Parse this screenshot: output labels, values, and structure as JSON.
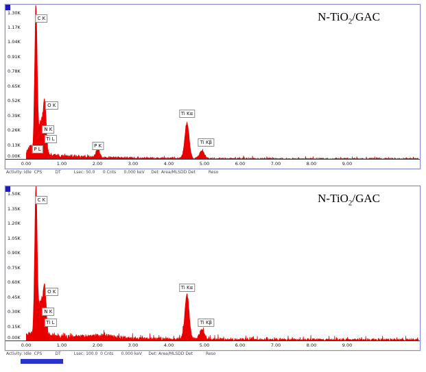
{
  "colors": {
    "spectrum": "#e80000",
    "frame": "#8d8dd0",
    "corner": "#1b1bbe",
    "progress_bar": "#2733cc"
  },
  "panels": [
    {
      "title_prefix": "N-TiO",
      "title_sub": "2",
      "title_suffix": "/GAC",
      "status_text": "Activity: Idle  CPS          DT          Lsec: 50.0      0 Cnts      0.000 keV     Det: Area/MLSDD Det          Reso"
    },
    {
      "title_prefix": "N-TiO",
      "title_sub": "2",
      "title_suffix": "/GAC",
      "status_text": "Activity: Idle  CPS          DT          Lsec: 100.0  0 Cnts      0.000 keV     Det: Area/MLSDD Det          Reso"
    }
  ],
  "chart_data": [
    {
      "type": "area",
      "title": "N-TiO2/GAC",
      "series_color": "#e80000",
      "xlim": [
        0,
        11
      ],
      "ylim": [
        0,
        1.37
      ],
      "x_ticks": [
        "0.00",
        "1.00",
        "2.00",
        "3.00",
        "4.00",
        "5.00",
        "6.00",
        "7.00",
        "8.00",
        "9.00"
      ],
      "y_ticks": [
        "1.30K",
        "1.17K",
        "1.04K",
        "0.91K",
        "0.78K",
        "0.65K",
        "0.52K",
        "0.39K",
        "0.26K",
        "0.13K",
        "0.00K"
      ],
      "seed": 3,
      "background": {
        "base": 0.05,
        "decay": 1.6,
        "floor": 0.005,
        "jitter": 0.015,
        "spike_p": 0.05
      },
      "peaks": [
        {
          "label": "C K",
          "energy": 0.277,
          "height": 1.32,
          "sigma": 0.035,
          "label_y": 1.215,
          "label_dx": 8
        },
        {
          "label": "O K",
          "energy": 0.525,
          "height": 0.42,
          "sigma": 0.042,
          "label_y": 0.44,
          "label_dx": 10
        },
        {
          "label": "N K",
          "energy": 0.392,
          "height": 0.2,
          "sigma": 0.045,
          "label_y": 0.23,
          "label_dx": 12
        },
        {
          "label": "Ti L",
          "energy": 0.452,
          "height": 0.16,
          "sigma": 0.05,
          "label_y": 0.145,
          "label_dx": 12
        },
        {
          "label": "P L",
          "energy": 0.125,
          "height": 0.06,
          "sigma": 0.05,
          "label_y": 0.055,
          "label_dx": 10
        },
        {
          "label": "P K",
          "energy": 2.013,
          "height": 0.075,
          "sigma": 0.05,
          "label_y": 0.085,
          "label_dx": 0
        },
        {
          "label": "Ti Kα",
          "energy": 4.51,
          "height": 0.315,
          "sigma": 0.06,
          "label_y": 0.37,
          "label_dx": 0
        },
        {
          "label": "Ti Kβ",
          "energy": 4.93,
          "height": 0.07,
          "sigma": 0.065,
          "label_y": 0.115,
          "label_dx": 6
        }
      ]
    },
    {
      "type": "area",
      "title": "N-TiO2/GAC",
      "series_color": "#e80000",
      "xlim": [
        0,
        11
      ],
      "ylim": [
        0,
        1.58
      ],
      "x_ticks": [
        "0.00",
        "1.00",
        "2.00",
        "3.00",
        "4.00",
        "5.00",
        "6.00",
        "7.00",
        "8.00",
        "9.00"
      ],
      "y_ticks": [
        "1.50K",
        "1.35K",
        "1.20K",
        "1.05K",
        "0.90K",
        "0.75K",
        "0.60K",
        "0.45K",
        "0.30K",
        "0.15K",
        "0.00K"
      ],
      "seed": 11,
      "background": {
        "base": 0.06,
        "decay": 2.2,
        "floor": 0.008,
        "jitter": 0.028,
        "spike_p": 0.08
      },
      "peaks": [
        {
          "label": "C K",
          "energy": 0.277,
          "height": 1.52,
          "sigma": 0.035,
          "label_y": 1.4,
          "label_dx": 8
        },
        {
          "label": "O K",
          "energy": 0.525,
          "height": 0.44,
          "sigma": 0.042,
          "label_y": 0.46,
          "label_dx": 10
        },
        {
          "label": "N K",
          "energy": 0.392,
          "height": 0.24,
          "sigma": 0.045,
          "label_y": 0.26,
          "label_dx": 12
        },
        {
          "label": "Ti L",
          "energy": 0.452,
          "height": 0.19,
          "sigma": 0.05,
          "label_y": 0.15,
          "label_dx": 12
        },
        {
          "label": "",
          "energy": 2.1,
          "height": 0.02,
          "sigma": 0.4
        },
        {
          "label": "Ti Kα",
          "energy": 4.51,
          "height": 0.46,
          "sigma": 0.06,
          "label_y": 0.5,
          "label_dx": 0
        },
        {
          "label": "Ti Kβ",
          "energy": 4.93,
          "height": 0.1,
          "sigma": 0.065,
          "label_y": 0.145,
          "label_dx": 6
        }
      ]
    }
  ]
}
